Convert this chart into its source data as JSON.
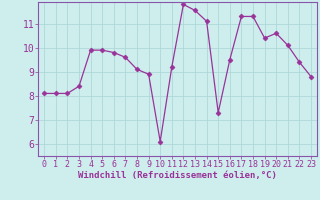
{
  "x": [
    0,
    1,
    2,
    3,
    4,
    5,
    6,
    7,
    8,
    9,
    10,
    11,
    12,
    13,
    14,
    15,
    16,
    17,
    18,
    19,
    20,
    21,
    22,
    23
  ],
  "y": [
    8.1,
    8.1,
    8.1,
    8.4,
    9.9,
    9.9,
    9.8,
    9.6,
    9.1,
    8.9,
    6.1,
    9.2,
    11.8,
    11.55,
    11.1,
    7.3,
    9.5,
    11.3,
    11.3,
    10.4,
    10.6,
    10.1,
    9.4,
    8.8
  ],
  "line_color": "#993399",
  "marker": "D",
  "marker_size": 2.5,
  "bg_color": "#ceeeed",
  "grid_color": "#b0d8d8",
  "xlabel": "Windchill (Refroidissement éolien,°C)",
  "xlabel_fontsize": 6.5,
  "ylabel_ticks": [
    6,
    7,
    8,
    9,
    10,
    11
  ],
  "ylim": [
    5.5,
    11.9
  ],
  "xlim": [
    -0.5,
    23.5
  ],
  "tick_fontsize": 6,
  "tick_color": "#993399",
  "spine_color": "#8855aa"
}
